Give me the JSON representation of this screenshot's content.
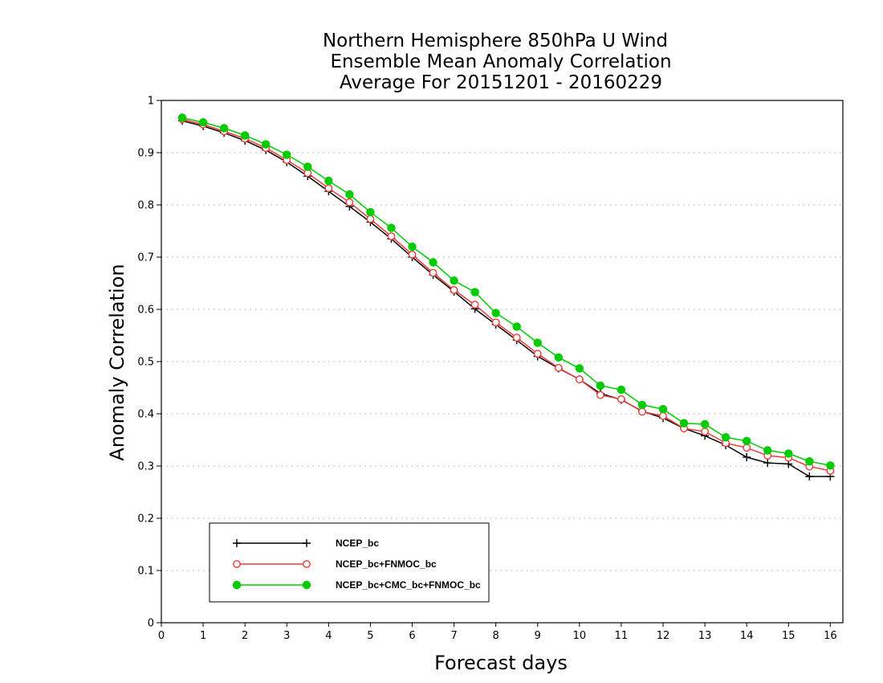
{
  "chart_data": {
    "type": "line",
    "title_lines": [
      "Northern Hemisphere 850hPa U Wind",
      "Ensemble Mean Anomaly Correlation",
      "Average For 20151201 - 20160229"
    ],
    "xlabel": "Forecast days",
    "ylabel": "Anomaly Correlation",
    "xlim": [
      0,
      16.3
    ],
    "ylim": [
      0,
      1
    ],
    "xticks": [
      "0",
      "1",
      "2",
      "3",
      "4",
      "5",
      "6",
      "7",
      "8",
      "9",
      "10",
      "11",
      "12",
      "13",
      "14",
      "15",
      "16"
    ],
    "yticks": [
      "0",
      "0.1",
      "0.2",
      "0.3",
      "0.4",
      "0.5",
      "0.6",
      "0.7",
      "0.8",
      "0.9",
      "1"
    ],
    "grid": true,
    "legend_position": "bottom-left",
    "x": [
      0.5,
      1,
      1.5,
      2,
      2.5,
      3,
      3.5,
      4,
      4.5,
      5,
      5.5,
      6,
      6.5,
      7,
      7.5,
      8,
      8.5,
      9,
      9.5,
      10,
      10.5,
      11,
      11.5,
      12,
      12.5,
      13,
      13.5,
      14,
      14.5,
      15,
      15.5,
      16
    ],
    "series": [
      {
        "name": "NCEP_bc",
        "color": "#000000",
        "marker": "plus",
        "values": [
          0.961,
          0.951,
          0.938,
          0.923,
          0.905,
          0.882,
          0.855,
          0.826,
          0.797,
          0.767,
          0.735,
          0.7,
          0.666,
          0.634,
          0.601,
          0.571,
          0.541,
          0.51,
          0.487,
          0.466,
          0.439,
          0.427,
          0.405,
          0.392,
          0.372,
          0.358,
          0.34,
          0.317,
          0.306,
          0.304,
          0.28,
          0.28
        ]
      },
      {
        "name": "NCEP_bc+FNMOC_bc",
        "color": "#ee3b3b",
        "marker": "open-circle",
        "values": [
          0.964,
          0.954,
          0.941,
          0.927,
          0.909,
          0.886,
          0.861,
          0.832,
          0.805,
          0.773,
          0.74,
          0.705,
          0.67,
          0.637,
          0.609,
          0.575,
          0.546,
          0.515,
          0.488,
          0.466,
          0.436,
          0.428,
          0.404,
          0.396,
          0.372,
          0.366,
          0.344,
          0.335,
          0.32,
          0.316,
          0.299,
          0.291
        ]
      },
      {
        "name": "NCEP_bc+CMC_bc+FNMOC_bc",
        "color": "#00cc00",
        "marker": "filled-circle",
        "values": [
          0.967,
          0.958,
          0.947,
          0.933,
          0.916,
          0.896,
          0.873,
          0.846,
          0.82,
          0.786,
          0.756,
          0.72,
          0.69,
          0.655,
          0.633,
          0.593,
          0.567,
          0.536,
          0.508,
          0.487,
          0.454,
          0.446,
          0.417,
          0.409,
          0.382,
          0.38,
          0.355,
          0.348,
          0.33,
          0.324,
          0.309,
          0.301
        ]
      }
    ]
  }
}
